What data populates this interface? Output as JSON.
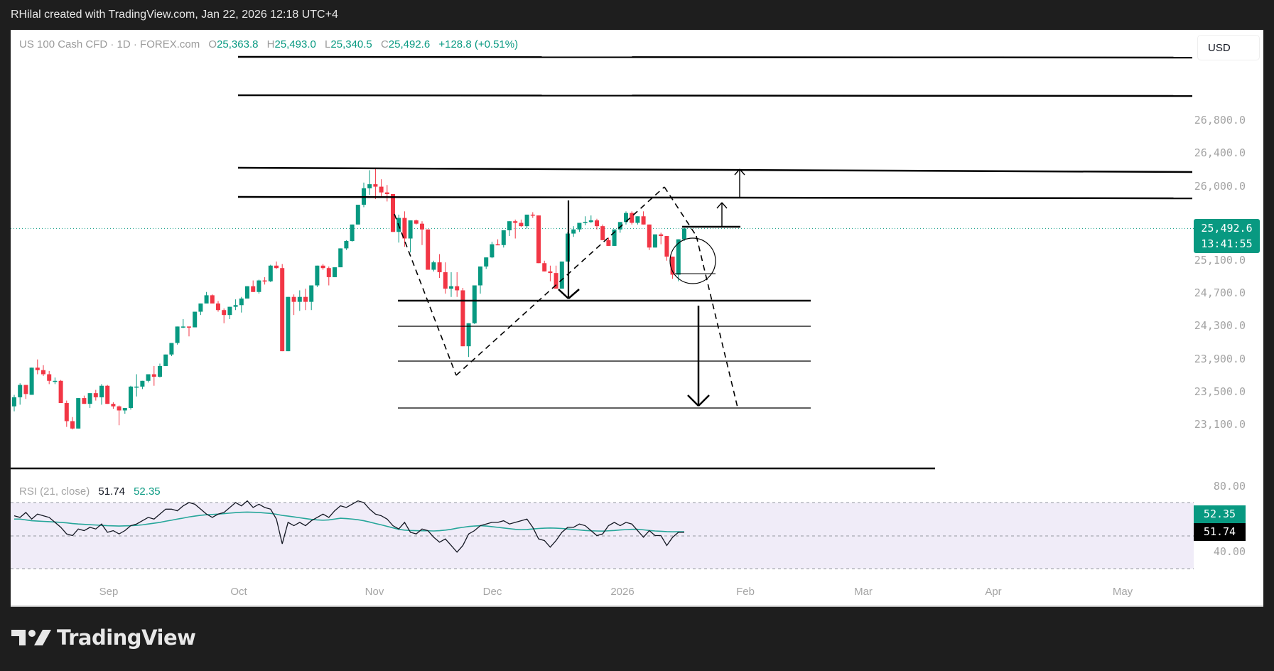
{
  "header": {
    "credit": "RHilal created with TradingView.com, Jan 22, 2026 12:18 UTC+4"
  },
  "legend": {
    "symbol": "US 100 Cash CFD · 1D · FOREX.com",
    "open_label": "O",
    "open": "25,363.8",
    "high_label": "H",
    "high": "25,493.0",
    "low_label": "L",
    "low": "25,340.5",
    "close_label": "C",
    "close": "25,492.6",
    "change": "+128.8 (+0.51%)"
  },
  "currency_button": "USD",
  "price_axis": {
    "ticks": [
      "26,800.0",
      "26,400.0",
      "26,000.0",
      "25,100.0",
      "24,700.0",
      "24,300.0",
      "23,900.0",
      "23,500.0",
      "23,100.0"
    ],
    "last_price": "25,492.6",
    "countdown": "13:41:55"
  },
  "rsi": {
    "label": "RSI (21, close)",
    "value": "51.74",
    "ma_value": "52.35",
    "axis_ticks": [
      "80.00",
      "40.00"
    ]
  },
  "time_axis": {
    "labels": [
      "Sep",
      "Oct",
      "Nov",
      "Dec",
      "2026",
      "Feb",
      "Mar",
      "Apr",
      "May"
    ]
  },
  "branding": {
    "logo_text": "TradingView"
  },
  "colors": {
    "up": "#089981",
    "down": "#f23645",
    "rsi_line": "#131722",
    "rsi_ma": "#26a69a",
    "rsi_band": "#f0ecf8",
    "background_dark": "#1e1e1e"
  },
  "chart_data": {
    "type": "candlestick",
    "title": "US 100 Cash CFD · 1D · FOREX.com",
    "xlabel": "",
    "ylabel": "USD",
    "ylim": [
      22900,
      27600
    ],
    "x_ticks": [
      "Sep",
      "Oct",
      "Nov",
      "Dec",
      "2026",
      "Feb",
      "Mar",
      "Apr",
      "May"
    ],
    "last": {
      "open": 25363.8,
      "high": 25493.0,
      "low": 25340.5,
      "close": 25492.6,
      "change": 128.8,
      "change_pct": 0.51
    },
    "candles": [
      [
        23330,
        23470,
        23270,
        23440
      ],
      [
        23440,
        23610,
        23350,
        23590
      ],
      [
        23590,
        23560,
        23420,
        23480
      ],
      [
        23470,
        23800,
        23470,
        23800
      ],
      [
        23800,
        23900,
        23720,
        23770
      ],
      [
        23770,
        23830,
        23700,
        23720
      ],
      [
        23720,
        23760,
        23600,
        23640
      ],
      [
        23640,
        23680,
        23600,
        23640
      ],
      [
        23640,
        23650,
        23380,
        23370
      ],
      [
        23370,
        23400,
        23080,
        23150
      ],
      [
        23150,
        23200,
        23050,
        23060
      ],
      [
        23060,
        23430,
        23060,
        23430
      ],
      [
        23430,
        23460,
        23370,
        23360
      ],
      [
        23360,
        23480,
        23310,
        23490
      ],
      [
        23490,
        23530,
        23400,
        23440
      ],
      [
        23440,
        23600,
        23350,
        23580
      ],
      [
        23580,
        23590,
        23380,
        23360
      ],
      [
        23360,
        23380,
        23300,
        23330
      ],
      [
        23330,
        23340,
        23100,
        23280
      ],
      [
        23280,
        23310,
        23240,
        23310
      ],
      [
        23310,
        23580,
        23290,
        23570
      ],
      [
        23570,
        23720,
        23450,
        23570
      ],
      [
        23570,
        23640,
        23540,
        23640
      ],
      [
        23640,
        23700,
        23620,
        23720
      ],
      [
        23720,
        23820,
        23580,
        23690
      ],
      [
        23690,
        23850,
        23680,
        23820
      ],
      [
        23820,
        23910,
        23820,
        23960
      ],
      [
        23960,
        24090,
        23940,
        24100
      ],
      [
        24100,
        24300,
        24080,
        24300
      ],
      [
        24300,
        24390,
        24280,
        24300
      ],
      [
        24300,
        24290,
        24180,
        24290
      ],
      [
        24290,
        24480,
        24290,
        24480
      ],
      [
        24480,
        24580,
        24440,
        24580
      ],
      [
        24580,
        24720,
        24580,
        24680
      ],
      [
        24680,
        24690,
        24580,
        24580
      ],
      [
        24580,
        24610,
        24480,
        24500
      ],
      [
        24500,
        24520,
        24340,
        24440
      ],
      [
        24440,
        24530,
        24390,
        24540
      ],
      [
        24540,
        24630,
        24500,
        24560
      ],
      [
        24560,
        24660,
        24470,
        24640
      ],
      [
        24640,
        24790,
        24640,
        24790
      ],
      [
        24790,
        24860,
        24740,
        24720
      ],
      [
        24720,
        24870,
        24700,
        24860
      ],
      [
        24860,
        24900,
        24810,
        24850
      ],
      [
        24850,
        25050,
        24840,
        25040
      ],
      [
        25040,
        25090,
        25000,
        25010
      ],
      [
        25010,
        25060,
        24900,
        24000
      ],
      [
        24000,
        24650,
        24000,
        24660
      ],
      [
        24660,
        24690,
        24440,
        24600
      ],
      [
        24600,
        24740,
        24490,
        24660
      ],
      [
        24660,
        24760,
        24500,
        24600
      ],
      [
        24600,
        24800,
        24500,
        24800
      ],
      [
        24800,
        25040,
        24780,
        25040
      ],
      [
        25040,
        25060,
        24990,
        25010
      ],
      [
        25010,
        25030,
        24800,
        24900
      ],
      [
        24900,
        25020,
        24900,
        25020
      ],
      [
        25020,
        25250,
        25020,
        25250
      ],
      [
        25250,
        25350,
        25230,
        25340
      ],
      [
        25340,
        25500,
        25330,
        25540
      ],
      [
        25540,
        25780,
        25540,
        25780
      ],
      [
        25780,
        26050,
        25750,
        25980
      ],
      [
        25980,
        26200,
        25900,
        26030
      ],
      [
        26030,
        26220,
        25850,
        26000
      ],
      [
        26000,
        26090,
        25870,
        25930
      ],
      [
        25930,
        26020,
        25820,
        25910
      ],
      [
        25910,
        25890,
        25450,
        25450
      ],
      [
        25450,
        25660,
        25320,
        25620
      ],
      [
        25620,
        25700,
        25270,
        25370
      ],
      [
        25370,
        25580,
        25200,
        25590
      ],
      [
        25590,
        25600,
        25540,
        25550
      ],
      [
        25550,
        25580,
        25290,
        25480
      ],
      [
        25480,
        25480,
        25010,
        24990
      ],
      [
        24990,
        25100,
        24970,
        25080
      ],
      [
        25080,
        25180,
        24890,
        24960
      ],
      [
        24960,
        25080,
        24700,
        24760
      ],
      [
        24760,
        24960,
        24660,
        24790
      ],
      [
        24790,
        24960,
        24660,
        24740
      ],
      [
        24740,
        24770,
        24120,
        24060
      ],
      [
        24060,
        24340,
        23930,
        24340
      ],
      [
        24340,
        24780,
        24330,
        24800
      ],
      [
        24800,
        24920,
        24700,
        25030
      ],
      [
        25030,
        25130,
        25000,
        25140
      ],
      [
        25140,
        25330,
        25130,
        25300
      ],
      [
        25300,
        25360,
        25290,
        25290
      ],
      [
        25290,
        25470,
        25260,
        25470
      ],
      [
        25470,
        25560,
        25400,
        25580
      ],
      [
        25580,
        25600,
        25370,
        25560
      ],
      [
        25560,
        25600,
        25510,
        25520
      ],
      [
        25520,
        25660,
        25490,
        25660
      ],
      [
        25660,
        25690,
        25620,
        25650
      ],
      [
        25650,
        25650,
        25390,
        25070
      ],
      [
        25070,
        25100,
        24980,
        24970
      ],
      [
        24970,
        25040,
        24850,
        24950
      ],
      [
        24950,
        25040,
        24820,
        24760
      ],
      [
        24760,
        25030,
        24760,
        25090
      ],
      [
        25090,
        25450,
        25090,
        25430
      ],
      [
        25430,
        25520,
        25390,
        25480
      ],
      [
        25480,
        25560,
        25450,
        25560
      ],
      [
        25560,
        25640,
        25530,
        25570
      ],
      [
        25570,
        25650,
        25560,
        25590
      ],
      [
        25590,
        25610,
        25480,
        25520
      ],
      [
        25520,
        25540,
        25350,
        25350
      ],
      [
        25350,
        25380,
        25290,
        25280
      ],
      [
        25280,
        25480,
        25280,
        25480
      ],
      [
        25480,
        25550,
        25440,
        25570
      ],
      [
        25570,
        25700,
        25540,
        25680
      ],
      [
        25680,
        25700,
        25540,
        25560
      ],
      [
        25560,
        25620,
        25540,
        25640
      ],
      [
        25640,
        25700,
        25570,
        25540
      ],
      [
        25540,
        25540,
        25230,
        25260
      ],
      [
        25260,
        25420,
        25260,
        25420
      ],
      [
        25420,
        25440,
        25300,
        25400
      ],
      [
        25400,
        25390,
        25100,
        25150
      ],
      [
        25150,
        25140,
        24880,
        24930
      ],
      [
        24930,
        25360,
        24850,
        25360
      ],
      [
        25360,
        25493,
        25340,
        25492
      ]
    ],
    "horizontal_levels": [
      27500,
      27050,
      26230,
      25880,
      25480,
      24660,
      24380,
      24000,
      23480,
      22920
    ],
    "annotations": [
      "double-top / rounded bottom dashed path",
      "down arrow target ~23,480",
      "up arrows from 25,480 to 25,880 and 26,230",
      "circle highlighting reversal candles near 25,000"
    ]
  }
}
